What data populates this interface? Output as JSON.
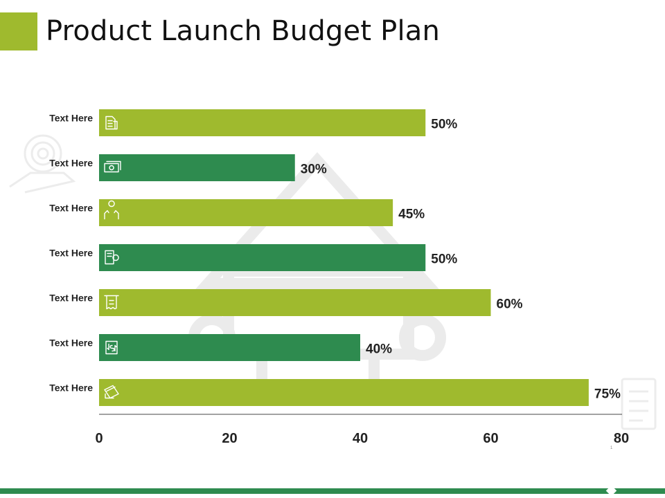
{
  "title": "Product Launch Budget Plan",
  "page_number": "1",
  "colors": {
    "accent": "#9fba2e",
    "dark_green": "#2e8b4f",
    "footer": "#2e8b4f",
    "watermark": "#e9e9e9"
  },
  "chart_data": {
    "type": "bar",
    "orientation": "horizontal",
    "title": "",
    "xlabel": "",
    "ylabel": "",
    "categories": [
      "Text Here",
      "Text Here",
      "Text Here",
      "Text Here",
      "Text Here",
      "Text Here",
      "Text Here"
    ],
    "values": [
      50,
      30,
      45,
      50,
      60,
      40,
      75
    ],
    "value_labels": [
      "50%",
      "30%",
      "45%",
      "50%",
      "60%",
      "40%",
      "75%"
    ],
    "bar_colors": [
      "#9fba2e",
      "#2e8b4f",
      "#9fba2e",
      "#2e8b4f",
      "#9fba2e",
      "#2e8b4f",
      "#9fba2e"
    ],
    "bar_icons": [
      "documents-icon",
      "money-icon",
      "idea-hands-icon",
      "budget-gear-icon",
      "receipt-icon",
      "exchange-icon",
      "card-icon"
    ],
    "xlim": [
      0,
      80
    ],
    "xticks": [
      0,
      20,
      40,
      60,
      80
    ],
    "grid": false,
    "legend": "none"
  }
}
